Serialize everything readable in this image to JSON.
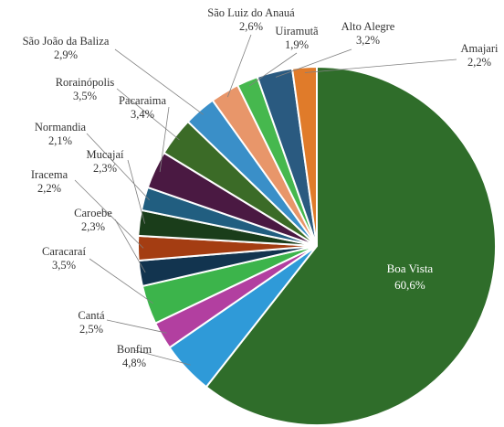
{
  "chart_data": {
    "type": "pie",
    "start_angle_deg": 0,
    "direction": "clockwise",
    "legend": "none",
    "slices": [
      {
        "name": "Boa Vista",
        "label": "Boa Vista",
        "value": 60.6,
        "value_text": "60,6%",
        "color": "#2f6d2a",
        "label_position": "inside"
      },
      {
        "name": "Bonfim",
        "label": "Bonfim",
        "value": 4.8,
        "value_text": "4,8%",
        "color": "#2f9ad8"
      },
      {
        "name": "Cantá",
        "label": "Cantá",
        "value": 2.5,
        "value_text": "2,5%",
        "color": "#b23fa0"
      },
      {
        "name": "Caracaraí",
        "label": "Caracaraí",
        "value": 3.5,
        "value_text": "3,5%",
        "color": "#3cb44b"
      },
      {
        "name": "Caroebe",
        "label": "Caroebe",
        "value": 2.3,
        "value_text": "2,3%",
        "color": "#12344f"
      },
      {
        "name": "Iracema",
        "label": "Iracema",
        "value": 2.2,
        "value_text": "2,2%",
        "color": "#a43d12"
      },
      {
        "name": "Mucajaí",
        "label": "Mucajaí",
        "value": 2.3,
        "value_text": "2,3%",
        "color": "#1a3d1a"
      },
      {
        "name": "Normandia",
        "label": "Normandia",
        "value": 2.1,
        "value_text": "2,1%",
        "color": "#215e80"
      },
      {
        "name": "Pacaraima",
        "label": "Pacaraima",
        "value": 3.4,
        "value_text": "3,4%",
        "color": "#4a1942"
      },
      {
        "name": "Rorainópolis",
        "label": "Rorainópolis",
        "value": 3.5,
        "value_text": "3,5%",
        "color": "#3b6b27"
      },
      {
        "name": "São João da Baliza",
        "label": "São João da Baliza",
        "value": 2.9,
        "value_text": "2,9%",
        "color": "#3a8fc8"
      },
      {
        "name": "São Luiz do Anauá",
        "label": "São Luiz do Anauá",
        "value": 2.6,
        "value_text": "2,6%",
        "color": "#e8966a"
      },
      {
        "name": "Uiramutã",
        "label": "Uiramutã",
        "value": 1.9,
        "value_text": "1,9%",
        "color": "#46b84e"
      },
      {
        "name": "Alto Alegre",
        "label": "Alto Alegre",
        "value": 3.2,
        "value_text": "3,2%",
        "color": "#2a5a80"
      },
      {
        "name": "Amajari",
        "label": "Amajari",
        "value": 2.2,
        "value_text": "2,2%",
        "color": "#e07b2a"
      }
    ]
  }
}
